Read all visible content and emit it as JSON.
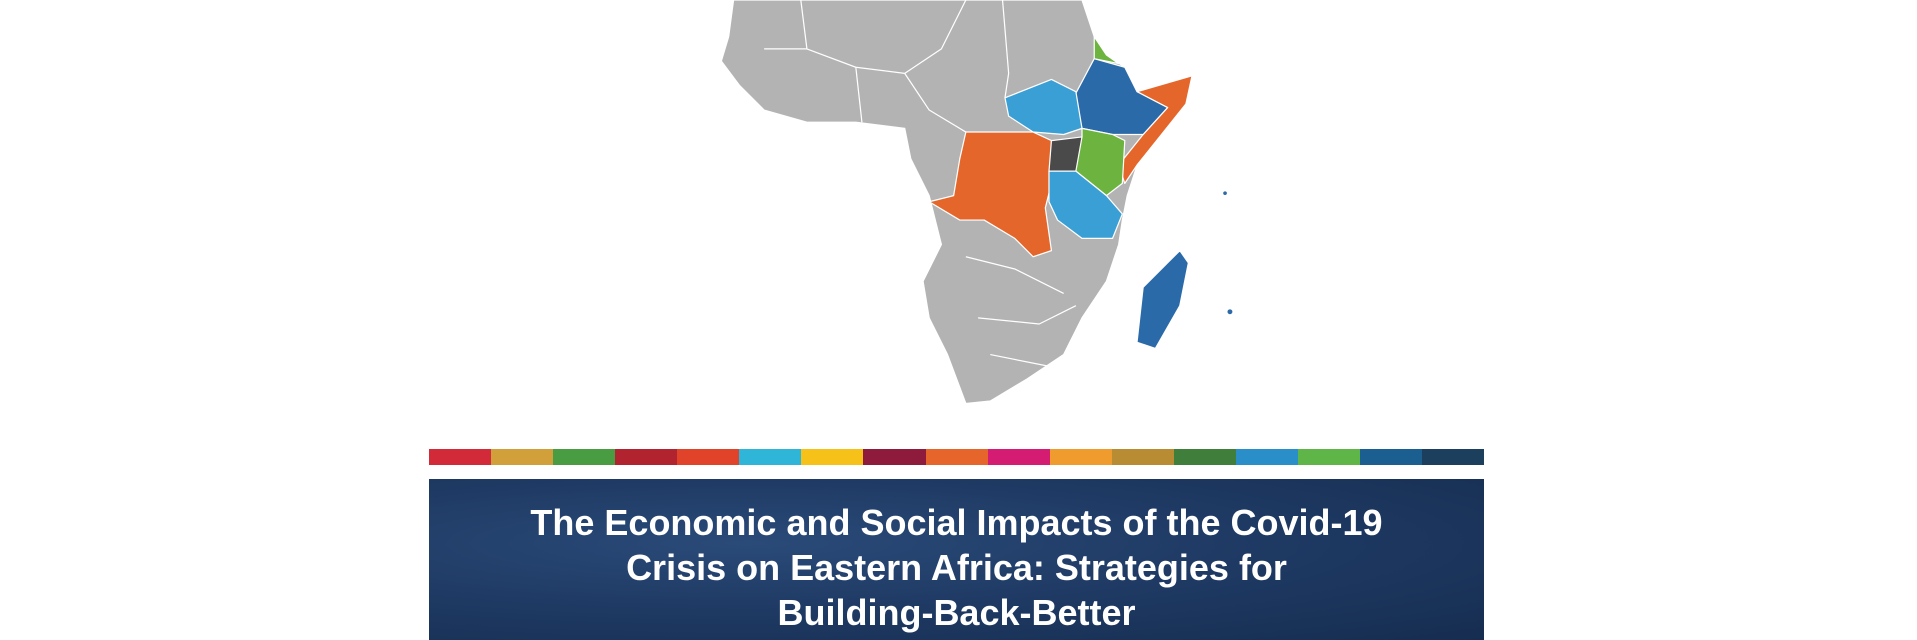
{
  "cover": {
    "title_lines": [
      "The Economic and Social Impacts of the Covid-19",
      "Crisis on Eastern Africa: Strategies for",
      "Building-Back-Better"
    ]
  }
}
